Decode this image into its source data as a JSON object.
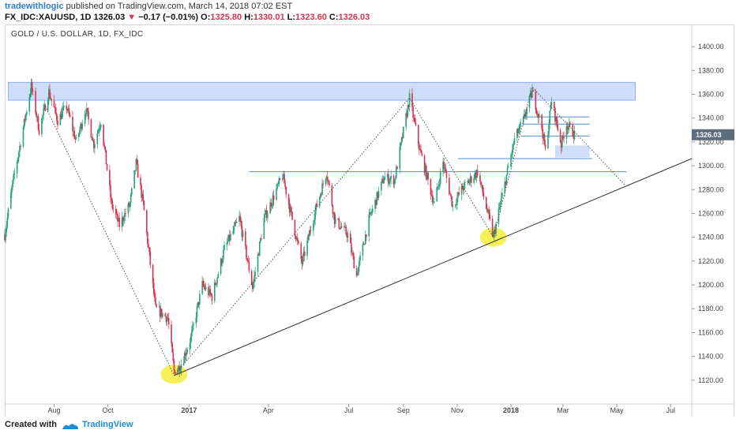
{
  "header": {
    "author": "tradewithlogic",
    "published_text": "published on TradingView.com, March 14, 2018 07:02 EST",
    "symbol_code": "FX_IDC:XAUUSD, 1D",
    "last_price": "1326.03",
    "change_arrow": "▼",
    "change": "−0.17 (−0.01%)",
    "o_label": "O:",
    "o_value": "1325.80",
    "h_label": "H:",
    "h_value": "1330.01",
    "l_label": "L:",
    "l_value": "1323.60",
    "c_label": "C:",
    "c_value": "1326.03"
  },
  "symbol_title": "GOLD / U.S. DOLLAR, 1D, FX_IDC",
  "footer": {
    "created_with": "Created with",
    "brand": "TradingView"
  },
  "colors": {
    "up": "#26a17b",
    "down": "#d8334a",
    "zone": "#b9cff5",
    "hline": "#4a8fd4",
    "trend": "#333333",
    "highlight": "#f5ee3c",
    "price_label_bg": "#5d6d7e"
  },
  "chart_data": {
    "type": "candlestick",
    "title": "GOLD / U.S. DOLLAR, 1D, FX_IDC",
    "ylim": [
      1100,
      1410
    ],
    "y_ticks": [
      "1120.00",
      "1140.00",
      "1160.00",
      "1180.00",
      "1200.00",
      "1220.00",
      "1240.00",
      "1260.00",
      "1280.00",
      "1300.00",
      "1320.00",
      "1340.00",
      "1360.00",
      "1380.00",
      "1400.00"
    ],
    "x_ticks": [
      {
        "label": "Aug",
        "date": "2016-08-01"
      },
      {
        "label": "Oct",
        "date": "2016-10-01"
      },
      {
        "label": "2017",
        "date": "2017-01-01",
        "bold": true
      },
      {
        "label": "Apr",
        "date": "2017-04-01"
      },
      {
        "label": "Jul",
        "date": "2017-07-01"
      },
      {
        "label": "Sep",
        "date": "2017-09-01"
      },
      {
        "label": "Nov",
        "date": "2017-11-01"
      },
      {
        "label": "2018",
        "date": "2018-01-01",
        "bold": true
      },
      {
        "label": "Mar",
        "date": "2018-03-01"
      },
      {
        "label": "May",
        "date": "2018-05-01"
      },
      {
        "label": "Jul",
        "date": "2018-07-01"
      }
    ],
    "x_range": [
      "2016-06-06",
      "2018-07-25"
    ],
    "last_price": 1326.03,
    "price_path": [
      [
        "2016-06-06",
        1242
      ],
      [
        "2016-06-15",
        1285
      ],
      [
        "2016-06-24",
        1320
      ],
      [
        "2016-07-06",
        1367
      ],
      [
        "2016-07-15",
        1330
      ],
      [
        "2016-07-26",
        1362
      ],
      [
        "2016-08-05",
        1338
      ],
      [
        "2016-08-15",
        1350
      ],
      [
        "2016-08-26",
        1320
      ],
      [
        "2016-09-06",
        1348
      ],
      [
        "2016-09-15",
        1318
      ],
      [
        "2016-09-23",
        1338
      ],
      [
        "2016-10-05",
        1268
      ],
      [
        "2016-10-14",
        1250
      ],
      [
        "2016-10-26",
        1268
      ],
      [
        "2016-11-02",
        1302
      ],
      [
        "2016-11-10",
        1268
      ],
      [
        "2016-11-24",
        1180
      ],
      [
        "2016-12-08",
        1172
      ],
      [
        "2016-12-15",
        1128
      ],
      [
        "2016-12-22",
        1132
      ],
      [
        "2017-01-03",
        1155
      ],
      [
        "2017-01-16",
        1200
      ],
      [
        "2017-01-27",
        1190
      ],
      [
        "2017-02-10",
        1230
      ],
      [
        "2017-02-27",
        1256
      ],
      [
        "2017-03-14",
        1198
      ],
      [
        "2017-03-27",
        1255
      ],
      [
        "2017-04-17",
        1292
      ],
      [
        "2017-05-09",
        1218
      ],
      [
        "2017-05-24",
        1262
      ],
      [
        "2017-06-06",
        1295
      ],
      [
        "2017-06-15",
        1255
      ],
      [
        "2017-06-30",
        1242
      ],
      [
        "2017-07-10",
        1208
      ],
      [
        "2017-07-24",
        1255
      ],
      [
        "2017-08-10",
        1290
      ],
      [
        "2017-08-22",
        1288
      ],
      [
        "2017-09-08",
        1357
      ],
      [
        "2017-09-20",
        1312
      ],
      [
        "2017-10-06",
        1268
      ],
      [
        "2017-10-16",
        1303
      ],
      [
        "2017-10-27",
        1266
      ],
      [
        "2017-11-06",
        1280
      ],
      [
        "2017-11-24",
        1295
      ],
      [
        "2017-12-05",
        1262
      ],
      [
        "2017-12-12",
        1240
      ],
      [
        "2017-12-22",
        1275
      ],
      [
        "2018-01-05",
        1322
      ],
      [
        "2018-01-15",
        1338
      ],
      [
        "2018-01-25",
        1362
      ],
      [
        "2018-02-05",
        1332
      ],
      [
        "2018-02-09",
        1312
      ],
      [
        "2018-02-16",
        1355
      ],
      [
        "2018-02-27",
        1318
      ],
      [
        "2018-03-05",
        1335
      ],
      [
        "2018-03-14",
        1326
      ]
    ],
    "supply_zone": {
      "x0": "2016-06-10",
      "x1": "2018-05-22",
      "y0": 1355,
      "y1": 1370
    },
    "small_zone": {
      "x0": "2018-02-20",
      "x1": "2018-03-31",
      "y0": 1307,
      "y1": 1317
    },
    "horizontal_lines": [
      {
        "x0": "2017-03-10",
        "x1": "2018-05-12",
        "y": 1295
      },
      {
        "x0": "2017-11-02",
        "x1": "2018-04-03",
        "y": 1306
      },
      {
        "x0": "2018-01-12",
        "x1": "2018-03-31",
        "y": 1325
      },
      {
        "x0": "2018-01-14",
        "x1": "2018-03-31",
        "y": 1335
      },
      {
        "x0": "2018-01-16",
        "x1": "2018-03-31",
        "y": 1341
      }
    ],
    "trendline": {
      "x0": "2016-12-15",
      "y0": 1124,
      "x1": "2018-07-25",
      "y1": 1306
    },
    "dotted_path": [
      [
        "2016-07-22",
        1350
      ],
      [
        "2016-12-15",
        1124
      ],
      [
        "2017-09-08",
        1357
      ],
      [
        "2017-12-12",
        1240
      ],
      [
        "2018-01-25",
        1366
      ],
      [
        "2018-05-10",
        1284
      ]
    ],
    "highlights": [
      {
        "x": "2016-12-15",
        "y": 1125
      },
      {
        "x": "2017-12-12",
        "y": 1240
      }
    ]
  }
}
